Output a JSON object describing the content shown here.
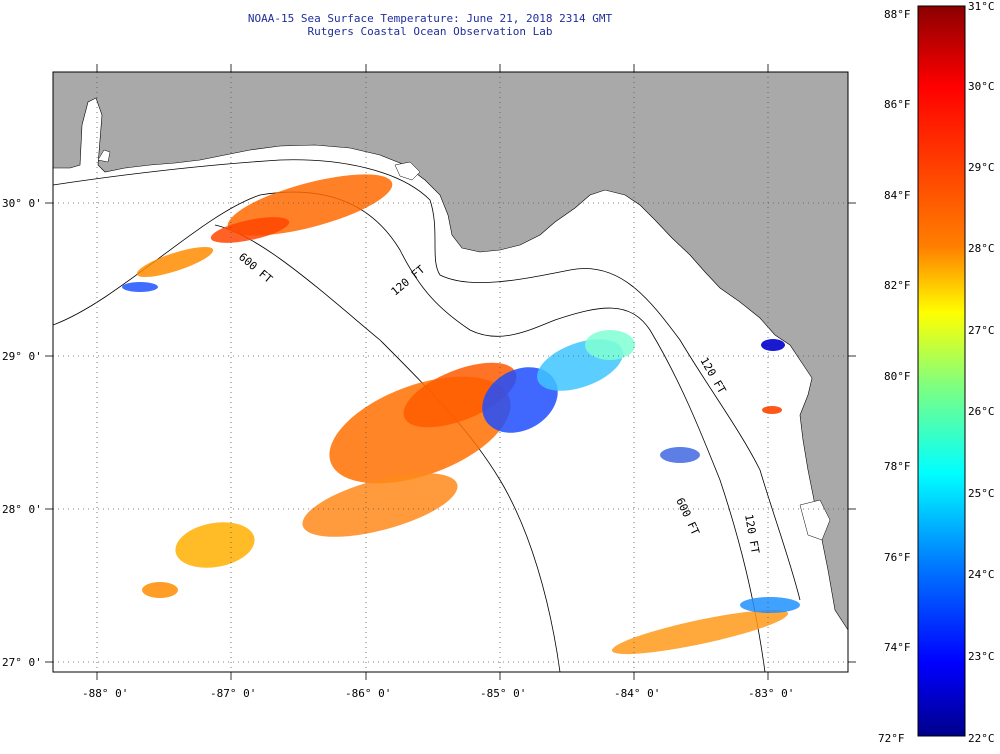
{
  "header": {
    "title_line1": "NOAA-15 Sea Surface Temperature:  June 21, 2018 2314 GMT",
    "title_line2": "Rutgers Coastal Ocean Observation Lab"
  },
  "map": {
    "lon_labels": [
      "-88° 0'",
      "-87° 0'",
      "-86° 0'",
      "-85° 0'",
      "-84° 0'",
      "-83° 0'"
    ],
    "lat_labels": [
      "30° 0'",
      "29° 0'",
      "28° 0'",
      "27° 0'"
    ],
    "contour_labels": [
      "120 FT",
      "600 FT",
      "120 FT",
      "600 FT",
      "120 FT"
    ],
    "colors": {
      "land": "#a9a9a9",
      "water": "#ffffff"
    }
  },
  "colorbar": {
    "fahrenheit_labels": [
      "88°F",
      "86°F",
      "84°F",
      "82°F",
      "80°F",
      "78°F",
      "76°F",
      "74°F",
      "72°F"
    ],
    "celsius_labels": [
      "31°C",
      "30°C",
      "29°C",
      "28°C",
      "27°C",
      "26°C",
      "25°C",
      "24°C",
      "23°C",
      "22°C"
    ],
    "gradient_stops": [
      "#8b0000",
      "#ff0000",
      "#ff7f00",
      "#ffff00",
      "#7fff7f",
      "#00ffff",
      "#007fff",
      "#0000ff",
      "#00008b"
    ]
  }
}
